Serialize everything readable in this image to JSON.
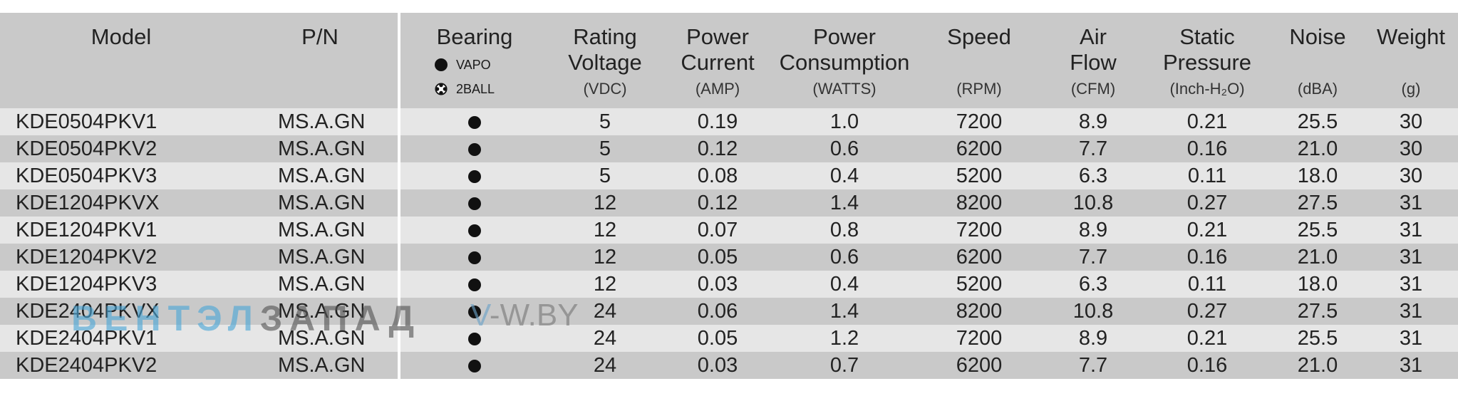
{
  "headers": [
    {
      "key": "model",
      "title": "Model",
      "unit": ""
    },
    {
      "key": "pn",
      "title": "P/N",
      "unit": ""
    },
    {
      "key": "bearing",
      "title": "Bearing",
      "unit": ""
    },
    {
      "key": "voltage",
      "title": "Rating\nVoltage",
      "unit": "(VDC)"
    },
    {
      "key": "current",
      "title": "Power\nCurrent",
      "unit": "(AMP)"
    },
    {
      "key": "power",
      "title": "Power\nConsumption",
      "unit": "(WATTS)"
    },
    {
      "key": "speed",
      "title": "Speed",
      "unit": "(RPM)"
    },
    {
      "key": "airflow",
      "title": "Air\nFlow",
      "unit": "(CFM)"
    },
    {
      "key": "pressure",
      "title": "Static\nPressure",
      "unit": "(Inch-H₂O)"
    },
    {
      "key": "noise",
      "title": "Noise",
      "unit": "(dBA)"
    },
    {
      "key": "weight",
      "title": "Weight",
      "unit": "(g)"
    }
  ],
  "bearing_legend": [
    {
      "icon": "filled-circle-icon",
      "label": "VAPO"
    },
    {
      "icon": "ball-bearing-icon",
      "label": "2BALL"
    }
  ],
  "rows": [
    {
      "model": "KDE0504PKV1",
      "pn": "MS.A.GN",
      "bearing": "VAPO",
      "voltage": "5",
      "current": "0.19",
      "power": "1.0",
      "speed": "7200",
      "airflow": "8.9",
      "pressure": "0.21",
      "noise": "25.5",
      "weight": "30"
    },
    {
      "model": "KDE0504PKV2",
      "pn": "MS.A.GN",
      "bearing": "VAPO",
      "voltage": "5",
      "current": "0.12",
      "power": "0.6",
      "speed": "6200",
      "airflow": "7.7",
      "pressure": "0.16",
      "noise": "21.0",
      "weight": "30"
    },
    {
      "model": "KDE0504PKV3",
      "pn": "MS.A.GN",
      "bearing": "VAPO",
      "voltage": "5",
      "current": "0.08",
      "power": "0.4",
      "speed": "5200",
      "airflow": "6.3",
      "pressure": "0.11",
      "noise": "18.0",
      "weight": "30"
    },
    {
      "model": "KDE1204PKVX",
      "pn": "MS.A.GN",
      "bearing": "VAPO",
      "voltage": "12",
      "current": "0.12",
      "power": "1.4",
      "speed": "8200",
      "airflow": "10.8",
      "pressure": "0.27",
      "noise": "27.5",
      "weight": "31"
    },
    {
      "model": "KDE1204PKV1",
      "pn": "MS.A.GN",
      "bearing": "VAPO",
      "voltage": "12",
      "current": "0.07",
      "power": "0.8",
      "speed": "7200",
      "airflow": "8.9",
      "pressure": "0.21",
      "noise": "25.5",
      "weight": "31"
    },
    {
      "model": "KDE1204PKV2",
      "pn": "MS.A.GN",
      "bearing": "VAPO",
      "voltage": "12",
      "current": "0.05",
      "power": "0.6",
      "speed": "6200",
      "airflow": "7.7",
      "pressure": "0.16",
      "noise": "21.0",
      "weight": "31"
    },
    {
      "model": "KDE1204PKV3",
      "pn": "MS.A.GN",
      "bearing": "VAPO",
      "voltage": "12",
      "current": "0.03",
      "power": "0.4",
      "speed": "5200",
      "airflow": "6.3",
      "pressure": "0.11",
      "noise": "18.0",
      "weight": "31"
    },
    {
      "model": "KDE2404PKVX",
      "pn": "MS.A.GN",
      "bearing": "VAPO",
      "voltage": "24",
      "current": "0.06",
      "power": "1.4",
      "speed": "8200",
      "airflow": "10.8",
      "pressure": "0.27",
      "noise": "27.5",
      "weight": "31"
    },
    {
      "model": "KDE2404PKV1",
      "pn": "MS.A.GN",
      "bearing": "VAPO",
      "voltage": "24",
      "current": "0.05",
      "power": "1.2",
      "speed": "7200",
      "airflow": "8.9",
      "pressure": "0.21",
      "noise": "25.5",
      "weight": "31"
    },
    {
      "model": "KDE2404PKV2",
      "pn": "MS.A.GN",
      "bearing": "VAPO",
      "voltage": "24",
      "current": "0.03",
      "power": "0.7",
      "speed": "6200",
      "airflow": "7.7",
      "pressure": "0.16",
      "noise": "21.0",
      "weight": "31"
    }
  ],
  "watermark": {
    "part1": "ВЕНТЭЛ",
    "part2": "ЗАПАД",
    "site_v": "V",
    "site_rest": "-W.BY"
  },
  "colors": {
    "header_bg": "#c9c9c9",
    "row_light": "#e6e6e6",
    "row_dark": "#c9c9c9",
    "watermark_blue": "#4aa6d6"
  }
}
